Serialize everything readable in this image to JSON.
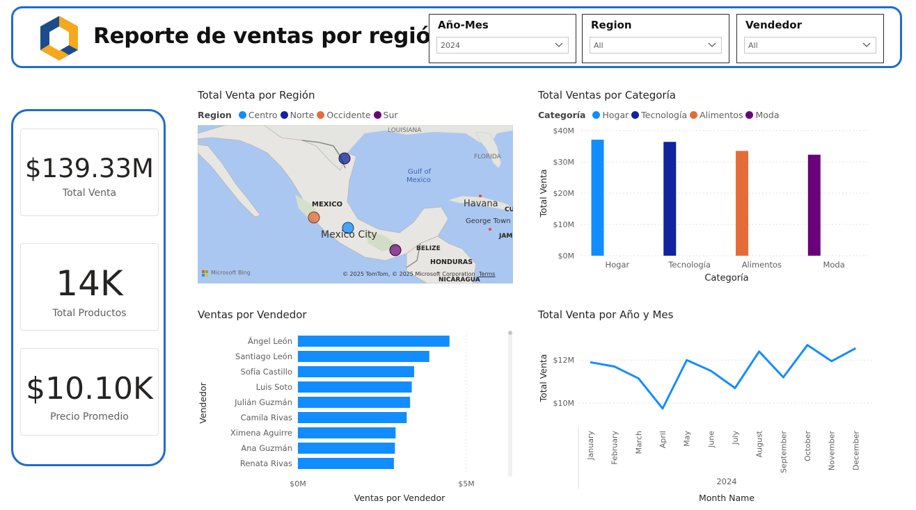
{
  "header": {
    "title": "Reporte de ventas por región",
    "slicers": [
      {
        "label": "Año-Mes",
        "value": "2024"
      },
      {
        "label": "Region",
        "value": "All"
      },
      {
        "label": "Vendedor",
        "value": "All"
      }
    ]
  },
  "kpis": [
    {
      "value": "$139.33M",
      "label": "Total Venta"
    },
    {
      "value": "14K",
      "label": "Total Productos"
    },
    {
      "value": "$10.10K",
      "label": "Precio Promedio"
    }
  ],
  "map": {
    "title": "Total Venta por Región",
    "legend_title": "Region",
    "legend": [
      {
        "name": "Centro",
        "color": "#118dff"
      },
      {
        "name": "Norte",
        "color": "#12239e"
      },
      {
        "name": "Occidente",
        "color": "#e66c37"
      },
      {
        "name": "Sur",
        "color": "#6b007b"
      }
    ],
    "labels": {
      "louisiana": "LOUISIANA",
      "florida": "FLORIDA",
      "gulf1": "Gulf of",
      "gulf2": "Mexico",
      "havana": "Havana",
      "cuba": "CU",
      "george_town": "George Town",
      "jam": "JAM",
      "mexico": "MEXICO",
      "mexico_city": "Mexico City",
      "belize": "BELIZE",
      "honduras": "HONDURAS",
      "nicaragua": "NICARAGUA",
      "bing": "Microsoft Bing",
      "copyright": "© 2025 TomTom, © 2025 Microsoft Corporation",
      "terms": "Terms"
    }
  },
  "categoria_chart": {
    "title": "Total Ventas por Categoría",
    "legend_title": "Categoría",
    "chart_data": {
      "type": "bar",
      "categories": [
        "Hogar",
        "Tecnología",
        "Alimentos",
        "Moda"
      ],
      "values": [
        37.1,
        36.4,
        33.5,
        32.3
      ],
      "colors": [
        "#118dff",
        "#12239e",
        "#e66c37",
        "#6b007b"
      ],
      "xlabel": "Categoría",
      "ylabel": "Total Venta",
      "ylim": [
        0,
        40
      ],
      "yticks": [
        "$0M",
        "$10M",
        "$20M",
        "$30M",
        "$40M"
      ],
      "grid": true
    }
  },
  "vendedor_chart": {
    "title": "Ventas por Vendedor",
    "chart_data": {
      "type": "bar",
      "orientation": "horizontal",
      "categories": [
        "Ángel León",
        "Santiago León",
        "Sofía Castillo",
        "Luis Soto",
        "Julián Guzmán",
        "Camila Rivas",
        "Ximena Aguirre",
        "Ana Guzmán",
        "Renata Rivas"
      ],
      "values": [
        4.5,
        3.9,
        3.45,
        3.38,
        3.33,
        3.23,
        2.9,
        2.88,
        2.85
      ],
      "color": "#118dff",
      "xlabel": "Ventas por Vendedor",
      "ylabel": "Vendedor",
      "xlim": [
        0,
        5.5
      ],
      "xticks": [
        "$0M",
        "$5M"
      ]
    }
  },
  "mes_chart": {
    "title": "Total Venta por Año y Mes",
    "chart_data": {
      "type": "line",
      "x": [
        "January",
        "February",
        "March",
        "April",
        "May",
        "June",
        "July",
        "August",
        "September",
        "October",
        "November",
        "December"
      ],
      "values": [
        11.9,
        11.7,
        11.15,
        9.75,
        12.0,
        11.5,
        10.7,
        12.4,
        11.2,
        12.7,
        11.95,
        12.55
      ],
      "color": "#118dff",
      "xlabel": "Month Name",
      "xgroup": "2024",
      "ylabel": "Total Venta",
      "ylim": [
        9.1,
        13.3
      ],
      "yticks": [
        {
          "v": 10,
          "label": "$10M"
        },
        {
          "v": 12,
          "label": "$12M"
        }
      ]
    }
  }
}
